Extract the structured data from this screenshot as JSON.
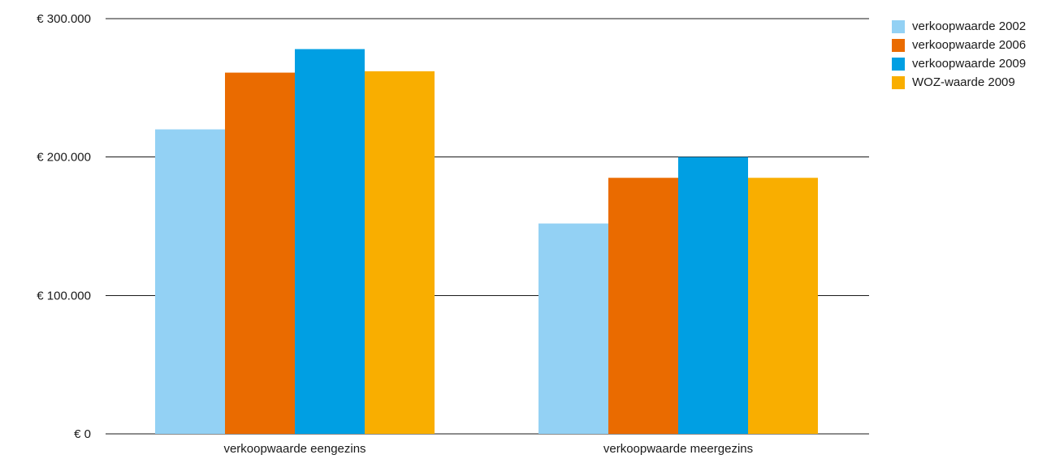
{
  "chart_data": {
    "type": "bar",
    "categories": [
      "verkoopwaarde eengezins",
      "verkoopwaarde meergezins"
    ],
    "series": [
      {
        "name": "verkoopwaarde 2002",
        "color": "#93d1f4",
        "values": [
          220000,
          152000
        ]
      },
      {
        "name": "verkoopwaarde 2006",
        "color": "#ea6b00",
        "values": [
          261000,
          185000
        ]
      },
      {
        "name": "verkoopwaarde 2009",
        "color": "#009fe3",
        "values": [
          278000,
          200000
        ]
      },
      {
        "name": "WOZ-waarde 2009",
        "color": "#f9ae00",
        "values": [
          262000,
          185000
        ]
      }
    ],
    "ylim": [
      0,
      300000
    ],
    "yticks": [
      {
        "value": 0,
        "label": "€ 0"
      },
      {
        "value": 100000,
        "label": "€ 100.000"
      },
      {
        "value": 200000,
        "label": "€ 200.000"
      },
      {
        "value": 300000,
        "label": "€ 300.000"
      }
    ],
    "grid": true,
    "legend_position": "top-right"
  }
}
